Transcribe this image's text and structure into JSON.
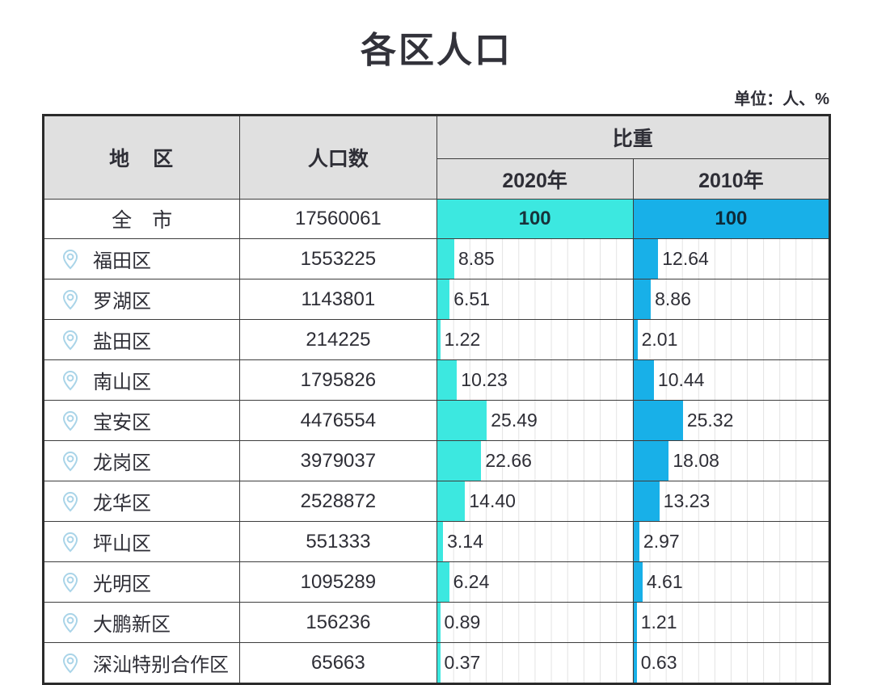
{
  "title": "各区人口",
  "unit_note": "单位：人、%",
  "colors": {
    "bar_2020": "#3ce8e0",
    "bar_2010": "#18b0e8",
    "header_bg": "#e0e0e0",
    "pin": "#a9d4e8"
  },
  "table": {
    "headers": {
      "region": "地　区",
      "population": "人口数",
      "proportion": "比重",
      "year_2020": "2020年",
      "year_2010": "2010年"
    },
    "total_row": {
      "region": "全　市",
      "population": "17560061",
      "p2020": "100",
      "p2010": "100"
    },
    "rows": [
      {
        "region": "福田区",
        "population": "1553225",
        "p2020": "8.85",
        "p2010": "12.64"
      },
      {
        "region": "罗湖区",
        "population": "1143801",
        "p2020": "6.51",
        "p2010": "8.86"
      },
      {
        "region": "盐田区",
        "population": "214225",
        "p2020": "1.22",
        "p2010": "2.01"
      },
      {
        "region": "南山区",
        "population": "1795826",
        "p2020": "10.23",
        "p2010": "10.44"
      },
      {
        "region": "宝安区",
        "population": "4476554",
        "p2020": "25.49",
        "p2010": "25.32"
      },
      {
        "region": "龙岗区",
        "population": "3979037",
        "p2020": "22.66",
        "p2010": "18.08"
      },
      {
        "region": "龙华区",
        "population": "2528872",
        "p2020": "14.40",
        "p2010": "13.23"
      },
      {
        "region": "坪山区",
        "population": "551333",
        "p2020": "3.14",
        "p2010": "2.97"
      },
      {
        "region": "光明区",
        "population": "1095289",
        "p2020": "6.24",
        "p2010": "4.61"
      },
      {
        "region": "大鹏新区",
        "population": "156236",
        "p2020": "0.89",
        "p2010": "1.21"
      },
      {
        "region": "深汕特别合作区",
        "population": "65663",
        "p2020": "0.37",
        "p2010": "0.63"
      }
    ]
  },
  "chart_data": {
    "type": "bar",
    "title": "各区人口",
    "unit": "人、%",
    "categories": [
      "全市",
      "福田区",
      "罗湖区",
      "盐田区",
      "南山区",
      "宝安区",
      "龙岗区",
      "龙华区",
      "坪山区",
      "光明区",
      "大鹏新区",
      "深汕特别合作区"
    ],
    "population": [
      17560061,
      1553225,
      1143801,
      214225,
      1795826,
      4476554,
      3979037,
      2528872,
      551333,
      1095289,
      156236,
      65663
    ],
    "series": [
      {
        "name": "2020年",
        "values": [
          100,
          8.85,
          6.51,
          1.22,
          10.23,
          25.49,
          22.66,
          14.4,
          3.14,
          6.24,
          0.89,
          0.37
        ]
      },
      {
        "name": "2010年",
        "values": [
          100,
          12.64,
          8.86,
          2.01,
          10.44,
          25.32,
          18.08,
          13.23,
          2.97,
          4.61,
          1.21,
          0.63
        ]
      }
    ],
    "xlim": [
      0,
      100
    ],
    "grid": true,
    "orientation": "horizontal"
  }
}
